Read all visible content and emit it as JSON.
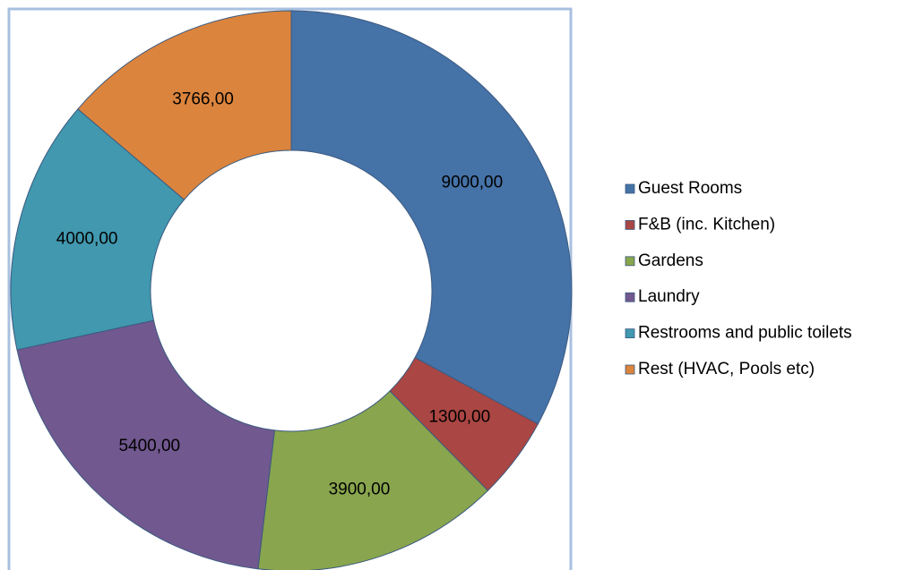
{
  "chart_data": {
    "type": "doughnut",
    "categories": [
      "Guest Rooms",
      "F&B (inc. Kitchen)",
      "Gardens",
      "Laundry",
      "Restrooms and public toilets",
      "Rest (HVAC, Pools etc)"
    ],
    "values": [
      9000,
      1300,
      3900,
      5400,
      4000,
      3766
    ],
    "value_labels": [
      "9000,00",
      "1300,00",
      "3900,00",
      "5400,00",
      "4000,00",
      "3766,00"
    ],
    "colors": [
      "#4572a7",
      "#aa4643",
      "#89a54e",
      "#71588f",
      "#4198af",
      "#db843d"
    ],
    "legend": "right"
  }
}
